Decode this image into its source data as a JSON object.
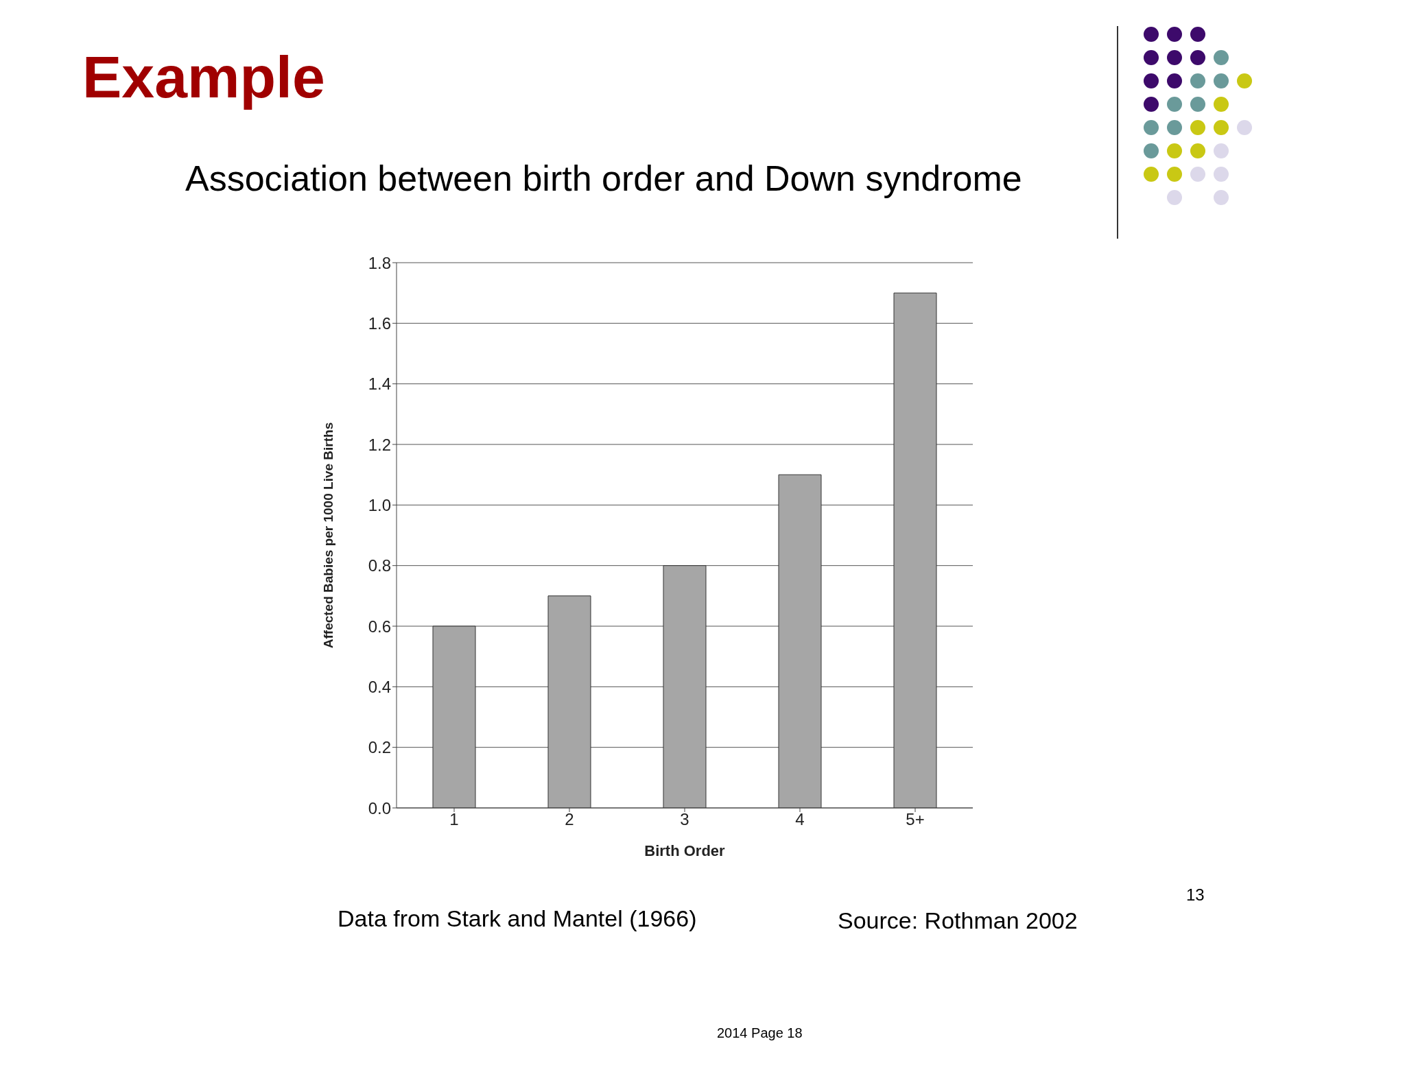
{
  "chart_data": {
    "type": "bar",
    "title": "Example",
    "subtitle": "Association between birth order and Down syndrome",
    "xlabel": "Birth Order",
    "ylabel": "Affected Babies per 1000 Live Births",
    "categories": [
      "1",
      "2",
      "3",
      "4",
      "5+"
    ],
    "values": [
      0.6,
      0.7,
      0.8,
      1.1,
      1.7
    ],
    "color": "#a6a6a6",
    "ylim": [
      0,
      1.8
    ],
    "yticks": [
      {
        "value": 0,
        "label": "0.0"
      },
      {
        "value": 0.2,
        "label": "0.2"
      },
      {
        "value": 0.4,
        "label": "0.4"
      },
      {
        "value": 0.6,
        "label": "0.6"
      },
      {
        "value": 0.8,
        "label": "0.8"
      },
      {
        "value": 1,
        "label": "1.0"
      },
      {
        "value": 1.2,
        "label": "1.2"
      },
      {
        "value": 1.4,
        "label": "1.4"
      },
      {
        "value": 1.6,
        "label": "1.6"
      },
      {
        "value": 1.8,
        "label": "1.8"
      }
    ],
    "grid": "y",
    "annotations": [
      "Data from Stark and Mantel (1966)",
      "Source: Rothman 2002",
      "13",
      "2014 Page 18"
    ]
  }
}
